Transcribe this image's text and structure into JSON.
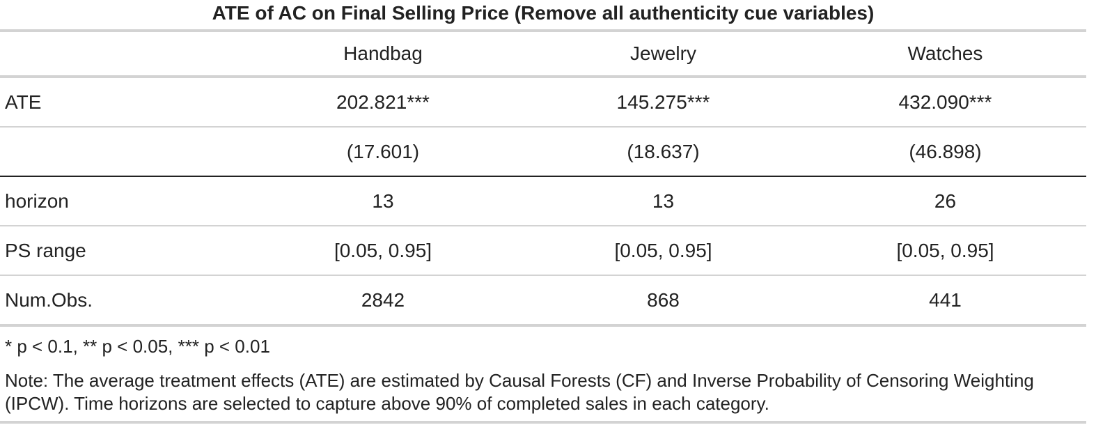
{
  "title": "ATE of AC on Final Selling Price (Remove all authenticity cue variables)",
  "columns": [
    "",
    "Handbag",
    "Jewelry",
    "Watches"
  ],
  "rows": [
    {
      "label": "ATE",
      "values": [
        "202.821***",
        "145.275***",
        "432.090***"
      ]
    },
    {
      "label": "",
      "values": [
        "(17.601)",
        "(18.637)",
        "(46.898)"
      ]
    },
    {
      "label": "horizon",
      "values": [
        "13",
        "13",
        "26"
      ]
    },
    {
      "label": "PS range",
      "values": [
        "[0.05, 0.95]",
        "[0.05, 0.95]",
        "[0.05, 0.95]"
      ]
    },
    {
      "label": "Num.Obs.",
      "values": [
        "2842",
        "868",
        "441"
      ]
    }
  ],
  "footnotes": {
    "significance": "* p < 0.1, ** p < 0.05, *** p < 0.01",
    "note": "Note: The average treatment effects (ATE) are estimated by Causal Forests (CF) and Inverse Probability of Censoring Weighting (IPCW). Time horizons are selected to capture above 90% of completed sales in each category."
  }
}
